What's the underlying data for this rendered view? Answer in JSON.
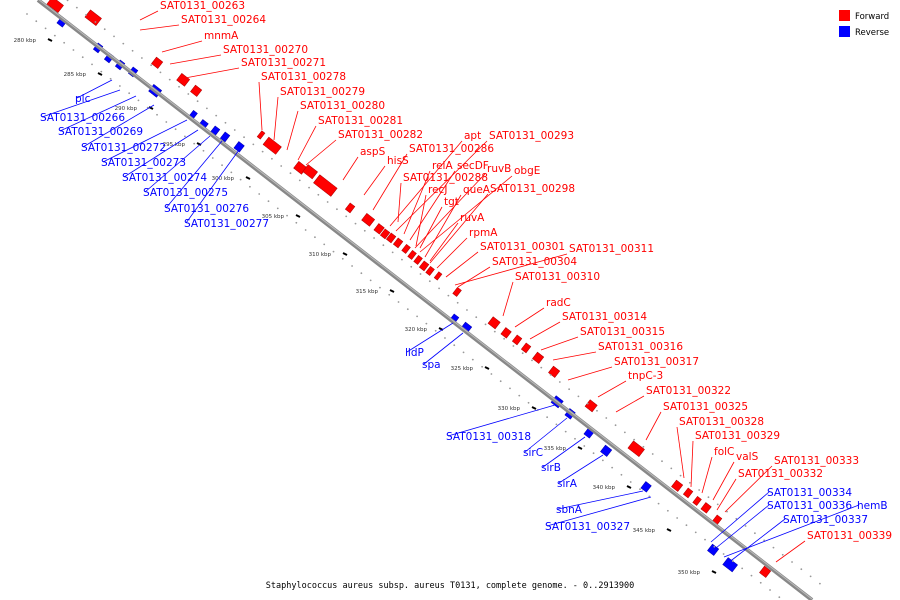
{
  "legend": {
    "forward": {
      "label": "Forward",
      "color": "#ff0000"
    },
    "reverse": {
      "label": "Reverse",
      "color": "#0000ff"
    }
  },
  "caption": "Staphylococcus aureus subsp. aureus T0131, complete genome. - 0..2913900",
  "scale_ticks": [
    "280 kbp",
    "285 kbp",
    "290 kbp",
    "295 kbp",
    "300 kbp",
    "305 kbp",
    "310 kbp",
    "315 kbp",
    "320 kbp",
    "325 kbp",
    "330 kbp",
    "335 kbp",
    "340 kbp",
    "345 kbp",
    "350 kbp"
  ],
  "forward_labels": [
    "SAT0131_00263",
    "SAT0131_00264",
    "mnmA",
    "SAT0131_00270",
    "SAT0131_00271",
    "SAT0131_00278",
    "SAT0131_00279",
    "SAT0131_00280",
    "SAT0131_00281",
    "SAT0131_00282",
    "aspS",
    "hisS",
    "SAT0131_00286",
    "apt",
    "SAT0131_00293",
    "relA",
    "secDF",
    "ruvB",
    "obgE",
    "SAT0131_00288",
    "recJ",
    "queA",
    "SAT0131_00298",
    "tgt",
    "ruvA",
    "rpmA",
    "SAT0131_00301",
    "SAT0131_00311",
    "SAT0131_00304",
    "SAT0131_00310",
    "radC",
    "SAT0131_00314",
    "SAT0131_00315",
    "SAT0131_00316",
    "SAT0131_00317",
    "tnpC-3",
    "SAT0131_00322",
    "SAT0131_00325",
    "SAT0131_00328",
    "SAT0131_00329",
    "folC",
    "valS",
    "SAT0131_00333",
    "SAT0131_00332",
    "SAT0131_00339"
  ],
  "reverse_labels": [
    "plc",
    "SAT0131_00266",
    "SAT0131_00269",
    "SAT0131_00272",
    "SAT0131_00273",
    "SAT0131_00274",
    "SAT0131_00275",
    "SAT0131_00276",
    "SAT0131_00277",
    "lldP",
    "spa",
    "SAT0131_00318",
    "sirC",
    "sirB",
    "sirA",
    "sbnA",
    "SAT0131_00327",
    "SAT0131_00334",
    "SAT0131_00336",
    "hemB",
    "SAT0131_00337"
  ]
}
